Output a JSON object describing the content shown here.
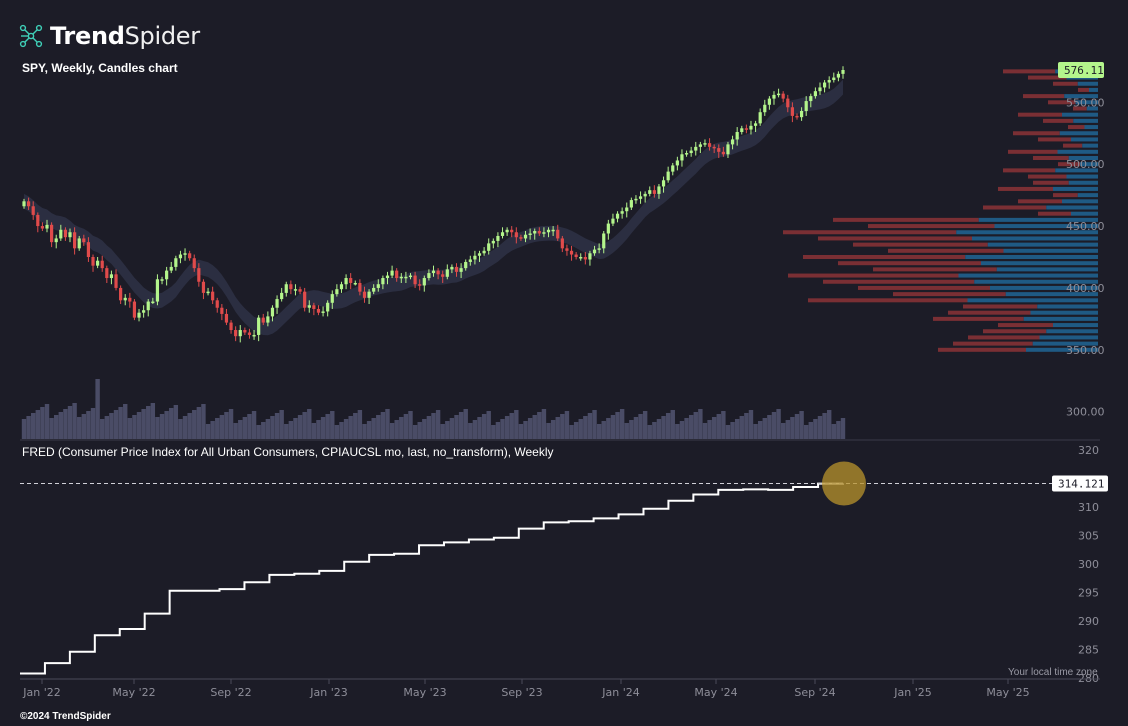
{
  "brand": {
    "name_bold": "Trend",
    "name_light": "Spider",
    "logo_icon": "network-nodes-icon"
  },
  "main_chart": {
    "title": "SPY, Weekly, Candles chart",
    "last_price_label": "576.11",
    "price_ticks": [
      "576.11",
      "550.00",
      "500.00",
      "450.00",
      "400.00",
      "350.00",
      "300.00"
    ]
  },
  "indicator": {
    "title": "FRED (Consumer Price Index for All Urban Consumers, CPIAUCSL mo, last, no_transform), Weekly",
    "last_value_label": "314.121",
    "ticks": [
      "320",
      "315",
      "310",
      "305",
      "300",
      "295",
      "290",
      "285",
      "280"
    ]
  },
  "x_axis": {
    "labels": [
      "Jan '22",
      "May '22",
      "Sep '22",
      "Jan '23",
      "May '23",
      "Sep '23",
      "Jan '24",
      "May '24",
      "Sep '24",
      "Jan '25",
      "May '25"
    ]
  },
  "footer": {
    "copyright": "©2024 TrendSpider",
    "timezone_note": "Your local time zone"
  },
  "colors": {
    "background": "#1c1c27",
    "up_candle": "#b4f58c",
    "down_candle": "#e04b4b",
    "moving_average_band": "#2e3145",
    "volume_bar": "#4a4c66",
    "volume_profile_up": "#1f5a84",
    "volume_profile_down": "#7a2f34",
    "cpi_line": "#ffffff",
    "price_badge": "#b4f58c",
    "highlight_marker": "#b8932c"
  },
  "chart_data": [
    {
      "type": "candlestick",
      "title": "SPY, Weekly, Candles chart",
      "ylim": [
        300,
        580
      ],
      "x_range": [
        "2022-01-03",
        "2024-10-07"
      ],
      "series": [
        {
          "values_weekly_close": [
            470,
            466,
            459,
            450,
            448,
            451,
            437,
            440,
            447,
            441,
            445,
            432,
            440,
            437,
            425,
            418,
            422,
            416,
            408,
            411,
            400,
            390,
            392,
            389,
            376,
            380,
            382,
            389,
            389,
            407,
            407,
            414,
            417,
            424,
            427,
            428,
            424,
            416,
            405,
            396,
            397,
            390,
            384,
            379,
            372,
            366,
            361,
            366,
            364,
            362,
            362,
            376,
            372,
            377,
            384,
            391,
            396,
            403,
            399,
            399,
            397,
            384,
            386,
            383,
            380,
            381,
            388,
            395,
            399,
            403,
            408,
            404,
            404,
            397,
            392,
            397,
            400,
            403,
            408,
            410,
            414,
            408,
            409,
            409,
            410,
            403,
            402,
            408,
            412,
            414,
            411,
            409,
            415,
            417,
            413,
            416,
            421,
            423,
            426,
            428,
            430,
            436,
            438,
            442,
            445,
            447,
            445,
            441,
            440,
            443,
            444,
            446,
            444,
            445,
            447,
            447,
            440,
            432,
            430,
            427,
            425,
            425,
            423,
            428,
            431,
            432,
            444,
            452,
            456,
            460,
            462,
            465,
            471,
            472,
            474,
            476,
            479,
            476,
            482,
            487,
            494,
            499,
            503,
            508,
            509,
            511,
            514,
            516,
            517,
            514,
            513,
            510,
            508,
            516,
            520,
            526,
            529,
            528,
            531,
            533,
            542,
            548,
            553,
            556,
            557,
            553,
            546,
            539,
            538,
            543,
            551,
            555,
            559,
            562,
            566,
            568,
            570,
            573,
            576.11
          ]
        }
      ],
      "moving_average_band": true,
      "volume_profile": true
    },
    {
      "type": "line",
      "title": "FRED (Consumer Price Index for All Urban Consumers, CPIAUCSL mo, last, no_transform), Weekly",
      "ylim": [
        280,
        320
      ],
      "x": [
        "2021-12",
        "2022-01",
        "2022-02",
        "2022-03",
        "2022-04",
        "2022-05",
        "2022-06",
        "2022-07",
        "2022-08",
        "2022-09",
        "2022-10",
        "2022-11",
        "2022-12",
        "2023-01",
        "2023-02",
        "2023-03",
        "2023-04",
        "2023-05",
        "2023-06",
        "2023-07",
        "2023-08",
        "2023-09",
        "2023-10",
        "2023-11",
        "2023-12",
        "2024-01",
        "2024-02",
        "2024-03",
        "2024-04",
        "2024-05",
        "2024-06",
        "2024-07",
        "2024-08",
        "2024-09"
      ],
      "series": [
        {
          "name": "CPIAUCSL",
          "values": [
            280.8,
            282.6,
            284.6,
            287.5,
            288.6,
            291.3,
            295.3,
            295.3,
            295.6,
            296.8,
            298.1,
            298.3,
            298.8,
            300.4,
            301.6,
            301.8,
            303.3,
            303.8,
            304.3,
            304.6,
            306.2,
            307.3,
            307.5,
            308.0,
            308.7,
            309.7,
            311.1,
            312.2,
            313.0,
            313.1,
            313.0,
            313.5,
            314.1,
            314.121
          ]
        }
      ],
      "last_value": 314.121
    }
  ]
}
